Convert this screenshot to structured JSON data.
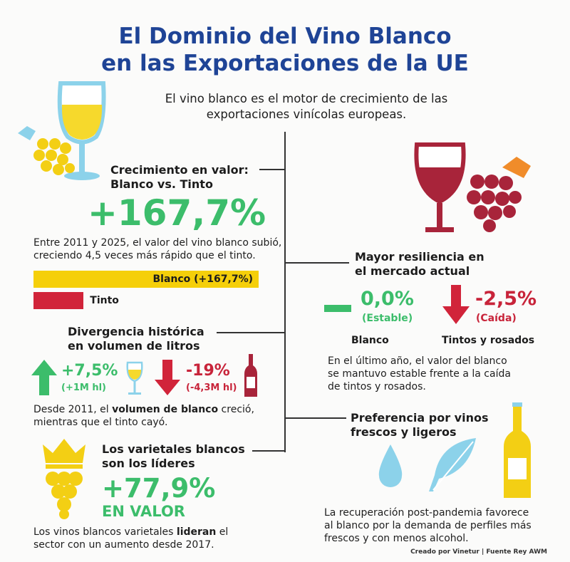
{
  "title": {
    "line1": "El Dominio del Vino Blanco",
    "line2": "en las Exportaciones de la UE"
  },
  "subtitle": {
    "line1": "El vino blanco es el motor de crecimiento de las",
    "line2": "exportaciones vinícolas europeas."
  },
  "colors": {
    "title": "#1f4496",
    "green": "#3cbd6b",
    "red": "#c8243a",
    "yellow": "#f5cf0a"
  },
  "growth": {
    "heading1": "Crecimiento en valor:",
    "heading2": "Blanco vs. Tinto",
    "value": "+167,7%",
    "text1": "Entre 2011 y 2025, el valor del vino blanco subió,",
    "text2": "creciendo 4,5 veces más rápido que el tinto.",
    "bars": [
      {
        "label": "Blanco (+167,7%)",
        "value": 167.7,
        "color": "#f5cf0a"
      },
      {
        "label": "Tinto",
        "value": 37.3,
        "color": "#d1243a"
      }
    ]
  },
  "volume": {
    "heading1": "Divergencia histórica",
    "heading2": "en volumen de litros",
    "white_value": "+7,5%",
    "white_sub": "(+1M hl)",
    "red_value": "-19%",
    "red_sub": "(-4,3M hl)",
    "text1_pre": "Desde 2011, el ",
    "text1_bold": "volumen de blanco",
    "text1_post": " creció,",
    "text2": "mientras que el tinto cayó."
  },
  "varietals": {
    "heading1": "Los varietales blancos",
    "heading2": "son los líderes",
    "value": "+77,9%",
    "value_label": "EN VALOR",
    "text1_pre": "Los vinos blancos varietales ",
    "text1_bold": "lideran",
    "text1_post": " el",
    "text2": "sector con un aumento desde 2017."
  },
  "resilience": {
    "heading1": "Mayor resiliencia en",
    "heading2": "el mercado actual",
    "white_value": "0,0%",
    "white_sub": "(Estable)",
    "white_label": "Blanco",
    "red_value": "-2,5%",
    "red_sub": "(Caída)",
    "red_label": "Tintos y rosados",
    "text1": "En el último año, el valor del blanco",
    "text2": "se mantuvo estable frente a la caída",
    "text3": "de tintos y rosados."
  },
  "preference": {
    "heading1": "Preferencia por vinos",
    "heading2": "frescos y ligeros",
    "text1": "La recuperación post-pandemia favorece",
    "text2": "al blanco por la demanda de perfiles más",
    "text3": "frescos y con menos alcohol."
  },
  "credits": "Creado por Vinetur | Fuente Rey AWM"
}
